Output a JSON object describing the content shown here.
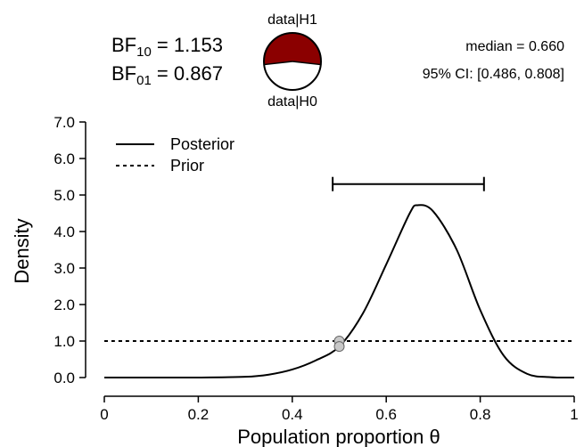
{
  "chart_data": {
    "type": "line",
    "xlabel": "Population proportion θ",
    "ylabel": "Density",
    "xlim": [
      0,
      1
    ],
    "ylim": [
      0,
      7
    ],
    "x_ticks": [
      "0",
      "0.2",
      "0.4",
      "0.6",
      "0.8",
      "1"
    ],
    "x_tick_values": [
      0,
      0.2,
      0.4,
      0.6,
      0.8,
      1
    ],
    "y_ticks": [
      "0.0",
      "1.0",
      "2.0",
      "3.0",
      "4.0",
      "5.0",
      "6.0",
      "7.0"
    ],
    "y_tick_values": [
      0,
      1,
      2,
      3,
      4,
      5,
      6,
      7
    ],
    "legend": {
      "placement": "top-left",
      "entries": [
        {
          "label": "Posterior",
          "style": "solid"
        },
        {
          "label": "Prior",
          "style": "dotted"
        }
      ]
    },
    "series": [
      {
        "name": "Posterior",
        "style": "solid",
        "x": [
          0,
          0.1,
          0.2,
          0.3,
          0.35,
          0.4,
          0.45,
          0.5,
          0.55,
          0.6,
          0.65,
          0.667,
          0.7,
          0.75,
          0.8,
          0.85,
          0.9,
          0.95,
          1
        ],
        "y": [
          0,
          0,
          0,
          0.02,
          0.08,
          0.22,
          0.47,
          0.85,
          1.75,
          3.1,
          4.5,
          4.72,
          4.55,
          3.5,
          1.85,
          0.6,
          0.1,
          0.01,
          0
        ]
      },
      {
        "name": "Prior",
        "style": "dotted",
        "x": [
          0,
          1
        ],
        "y": [
          1,
          1
        ]
      }
    ],
    "points": [
      {
        "x": 0.5,
        "y": 1.0,
        "color": "#c8c8c8"
      },
      {
        "x": 0.5,
        "y": 0.85,
        "color": "#c8c8c8"
      }
    ],
    "credible_interval": {
      "lower": 0.486,
      "upper": 0.808,
      "y": 5.3
    },
    "bayes_factors": {
      "bf10_label": "BF",
      "bf10_sub": "10",
      "bf10_value": " = 1.153",
      "bf01_label": "BF",
      "bf01_sub": "01",
      "bf01_value": " = 0.867"
    },
    "pie": {
      "top_label": "data|H1",
      "bottom_label": "data|H0",
      "h1_fraction": 0.5355,
      "h1_color": "#8b0000",
      "h0_color": "#ffffff"
    },
    "summary": {
      "median": "median = 0.660",
      "ci": "95% CI: [0.486, 0.808]"
    }
  }
}
